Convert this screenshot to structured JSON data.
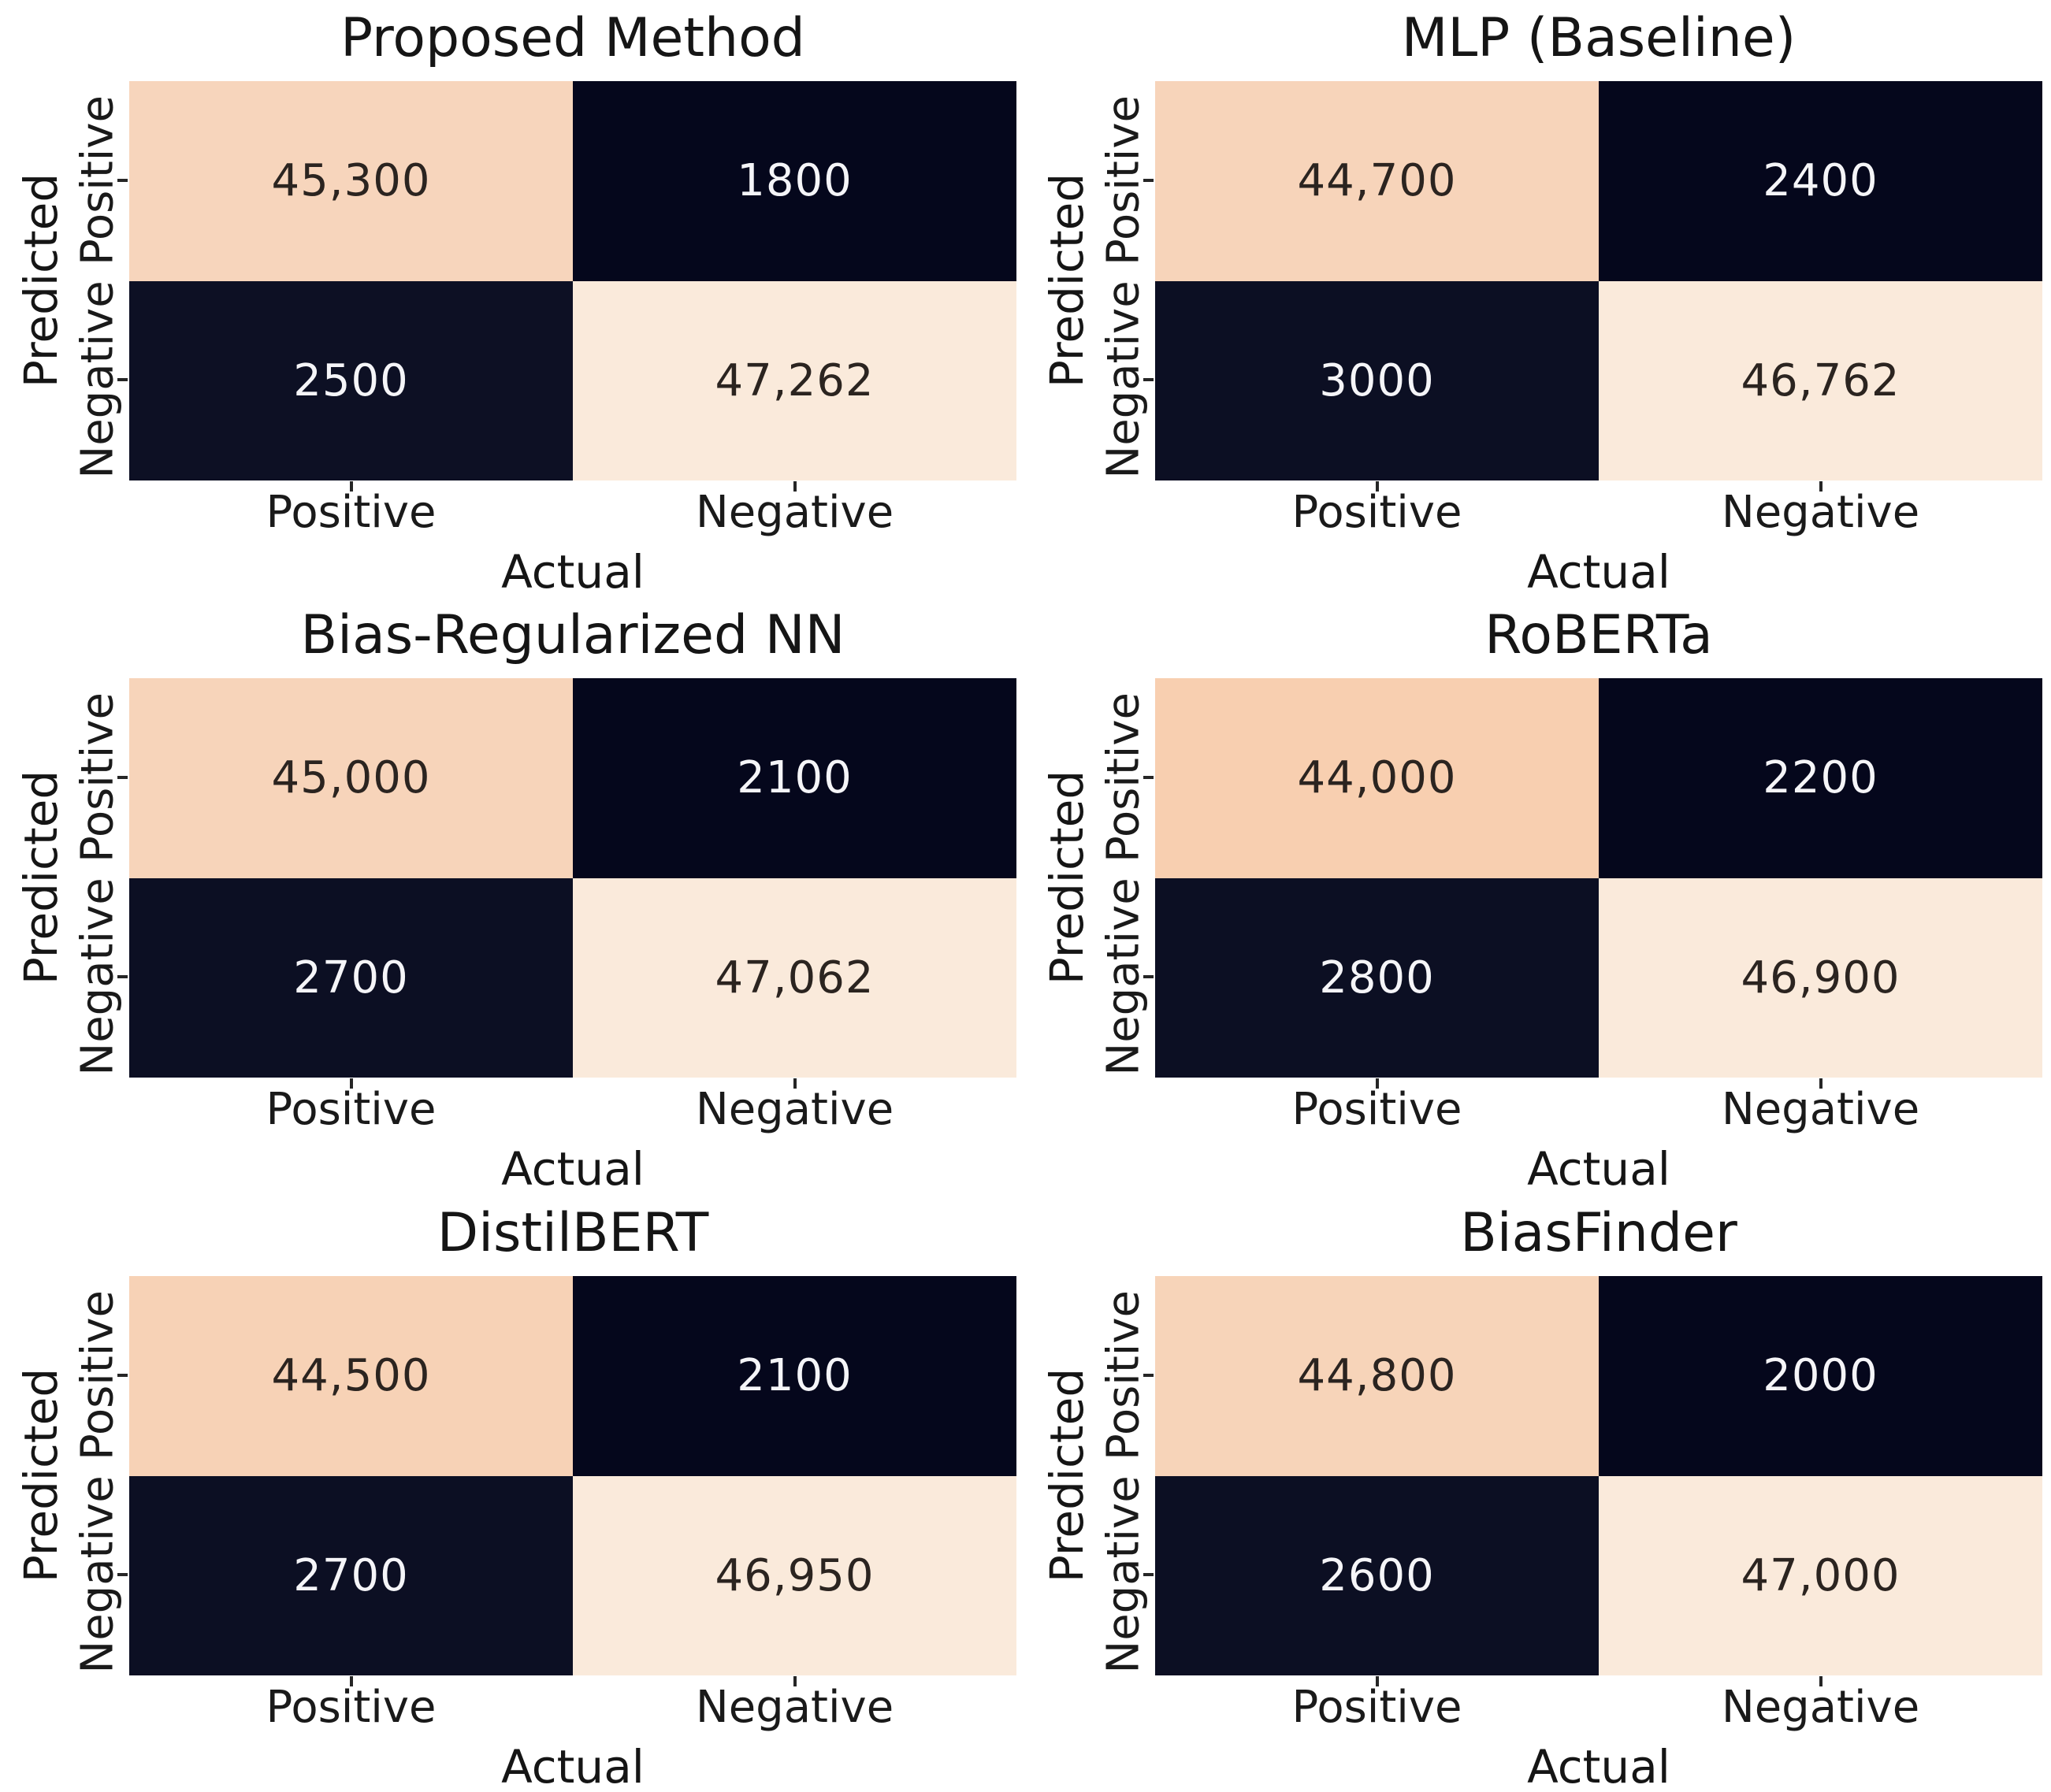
{
  "chart_data": [
    {
      "type": "heatmap",
      "title": "Proposed Method",
      "xlabel": "Actual",
      "ylabel": "Predicted",
      "x_categories": [
        "Positive",
        "Negative"
      ],
      "y_categories": [
        "Positive",
        "Negative"
      ],
      "values": [
        [
          45300,
          1800
        ],
        [
          2500,
          47262
        ]
      ],
      "cells": [
        [
          {
            "value": 45300,
            "label": "45,300",
            "bg": "#f7d5bc",
            "fg": "#2b2420"
          },
          {
            "value": 1800,
            "label": "1800",
            "bg": "#05071c",
            "fg": "#f5f5f8"
          }
        ],
        [
          {
            "value": 2500,
            "label": "2500",
            "bg": "#0d1024",
            "fg": "#f5f5f8"
          },
          {
            "value": 47262,
            "label": "47,262",
            "bg": "#faeadb",
            "fg": "#2b2420"
          }
        ]
      ]
    },
    {
      "type": "heatmap",
      "title": "MLP (Baseline)",
      "xlabel": "Actual",
      "ylabel": "Predicted",
      "x_categories": [
        "Positive",
        "Negative"
      ],
      "y_categories": [
        "Positive",
        "Negative"
      ],
      "values": [
        [
          44700,
          2400
        ],
        [
          3000,
          46762
        ]
      ],
      "cells": [
        [
          {
            "value": 44700,
            "label": "44,700",
            "bg": "#f7d4ba",
            "fg": "#2b2420"
          },
          {
            "value": 2400,
            "label": "2400",
            "bg": "#05071c",
            "fg": "#f5f5f8"
          }
        ],
        [
          {
            "value": 3000,
            "label": "3000",
            "bg": "#0c0f23",
            "fg": "#f5f5f8"
          },
          {
            "value": 46762,
            "label": "46,762",
            "bg": "#faeadb",
            "fg": "#2b2420"
          }
        ]
      ]
    },
    {
      "type": "heatmap",
      "title": "Bias-Regularized NN",
      "xlabel": "Actual",
      "ylabel": "Predicted",
      "x_categories": [
        "Positive",
        "Negative"
      ],
      "y_categories": [
        "Positive",
        "Negative"
      ],
      "values": [
        [
          45000,
          2100
        ],
        [
          2700,
          47062
        ]
      ],
      "cells": [
        [
          {
            "value": 45000,
            "label": "45,000",
            "bg": "#f7d4ba",
            "fg": "#2b2420"
          },
          {
            "value": 2100,
            "label": "2100",
            "bg": "#05071c",
            "fg": "#f5f5f8"
          }
        ],
        [
          {
            "value": 2700,
            "label": "2700",
            "bg": "#0c0f23",
            "fg": "#f5f5f8"
          },
          {
            "value": 47062,
            "label": "47,062",
            "bg": "#faeadb",
            "fg": "#2b2420"
          }
        ]
      ]
    },
    {
      "type": "heatmap",
      "title": "RoBERTa",
      "xlabel": "Actual",
      "ylabel": "Predicted",
      "x_categories": [
        "Positive",
        "Negative"
      ],
      "y_categories": [
        "Positive",
        "Negative"
      ],
      "values": [
        [
          44000,
          2200
        ],
        [
          2800,
          46900
        ]
      ],
      "cells": [
        [
          {
            "value": 44000,
            "label": "44,000",
            "bg": "#f8cfb0",
            "fg": "#2b2420"
          },
          {
            "value": 2200,
            "label": "2200",
            "bg": "#05071c",
            "fg": "#f5f5f8"
          }
        ],
        [
          {
            "value": 2800,
            "label": "2800",
            "bg": "#0c0f23",
            "fg": "#f5f5f8"
          },
          {
            "value": 46900,
            "label": "46,900",
            "bg": "#faeadb",
            "fg": "#2b2420"
          }
        ]
      ]
    },
    {
      "type": "heatmap",
      "title": "DistilBERT",
      "xlabel": "Actual",
      "ylabel": "Predicted",
      "x_categories": [
        "Positive",
        "Negative"
      ],
      "y_categories": [
        "Positive",
        "Negative"
      ],
      "values": [
        [
          44500,
          2100
        ],
        [
          2700,
          46950
        ]
      ],
      "cells": [
        [
          {
            "value": 44500,
            "label": "44,500",
            "bg": "#f7d2b6",
            "fg": "#2b2420"
          },
          {
            "value": 2100,
            "label": "2100",
            "bg": "#05071c",
            "fg": "#f5f5f8"
          }
        ],
        [
          {
            "value": 2700,
            "label": "2700",
            "bg": "#0c0f23",
            "fg": "#f5f5f8"
          },
          {
            "value": 46950,
            "label": "46,950",
            "bg": "#faeadb",
            "fg": "#2b2420"
          }
        ]
      ]
    },
    {
      "type": "heatmap",
      "title": "BiasFinder",
      "xlabel": "Actual",
      "ylabel": "Predicted",
      "x_categories": [
        "Positive",
        "Negative"
      ],
      "y_categories": [
        "Positive",
        "Negative"
      ],
      "values": [
        [
          44800,
          2000
        ],
        [
          2600,
          47000
        ]
      ],
      "cells": [
        [
          {
            "value": 44800,
            "label": "44,800",
            "bg": "#f7d4b9",
            "fg": "#2b2420"
          },
          {
            "value": 2000,
            "label": "2000",
            "bg": "#05071c",
            "fg": "#f5f5f8"
          }
        ],
        [
          {
            "value": 2600,
            "label": "2600",
            "bg": "#0c0f23",
            "fg": "#f5f5f8"
          },
          {
            "value": 47000,
            "label": "47,000",
            "bg": "#faeadb",
            "fg": "#2b2420"
          }
        ]
      ]
    }
  ],
  "colors": {
    "background": "#ffffff",
    "heat_low": "#05071c",
    "heat_high": "#faeadb",
    "axis_text": "#1a1a1a"
  }
}
